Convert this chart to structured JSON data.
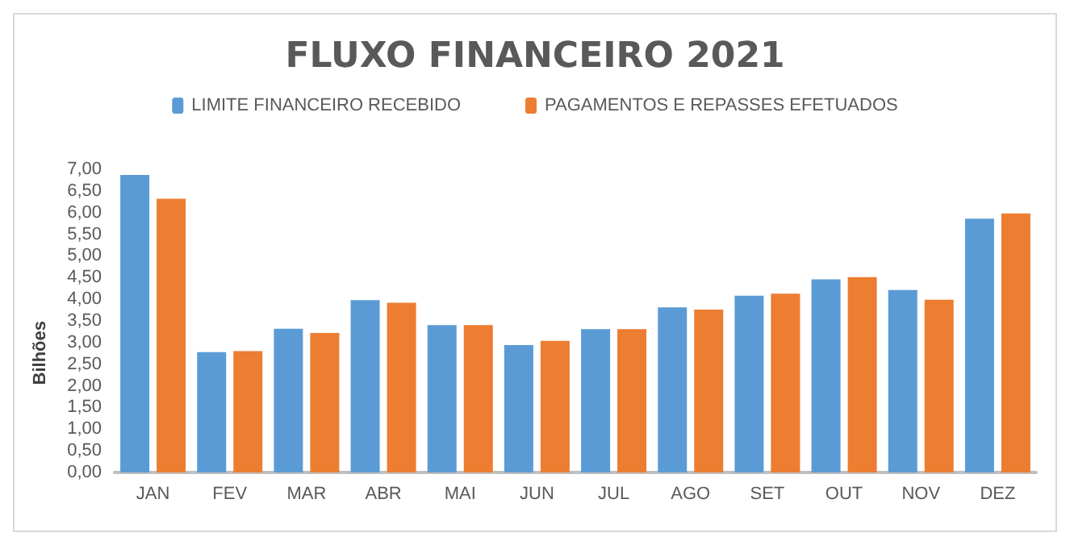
{
  "chart_data": {
    "type": "bar",
    "title": "FLUXO FINANCEIRO 2021",
    "ylabel": "Bilhões",
    "categories": [
      "JAN",
      "FEV",
      "MAR",
      "ABR",
      "MAI",
      "JUN",
      "JUL",
      "AGO",
      "SET",
      "OUT",
      "NOV",
      "DEZ"
    ],
    "series": [
      {
        "name": "LIMITE FINANCEIRO RECEBIDO",
        "color": "#5b9bd5",
        "values": [
          6.87,
          2.78,
          3.32,
          3.98,
          3.4,
          2.94,
          3.31,
          3.81,
          4.08,
          4.46,
          4.21,
          5.86
        ]
      },
      {
        "name": "PAGAMENTOS E REPASSES EFETUADOS",
        "color": "#ed7d31",
        "values": [
          6.32,
          2.8,
          3.22,
          3.92,
          3.4,
          3.04,
          3.31,
          3.76,
          4.13,
          4.51,
          3.99,
          5.98
        ]
      }
    ],
    "ylim": [
      0,
      7
    ],
    "yticks": [
      {
        "value": 0,
        "label": "0,00"
      },
      {
        "value": 0.5,
        "label": "0,50"
      },
      {
        "value": 1,
        "label": "1,00"
      },
      {
        "value": 1.5,
        "label": "1,50"
      },
      {
        "value": 2,
        "label": "2,00"
      },
      {
        "value": 2.5,
        "label": "2,50"
      },
      {
        "value": 3,
        "label": "3,00"
      },
      {
        "value": 3.5,
        "label": "3,50"
      },
      {
        "value": 4,
        "label": "4,00"
      },
      {
        "value": 4.5,
        "label": "4,50"
      },
      {
        "value": 5,
        "label": "5,00"
      },
      {
        "value": 5.5,
        "label": "5,50"
      },
      {
        "value": 6,
        "label": "6,00"
      },
      {
        "value": 6.5,
        "label": "6,50"
      },
      {
        "value": 7,
        "label": "7,00"
      }
    ],
    "grid": false,
    "legend": "top"
  }
}
